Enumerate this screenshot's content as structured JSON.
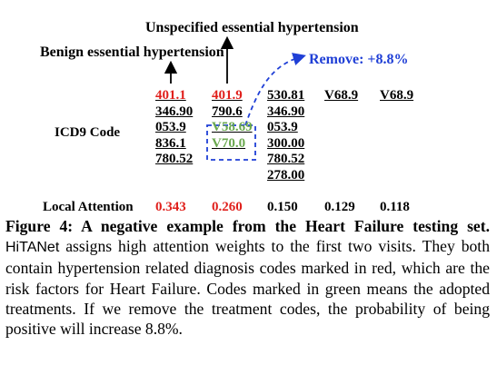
{
  "annotations": {
    "unspecified": "Unspecified essential hypertension",
    "benign": "Benign essential hypertension",
    "remove": "Remove: +8.8%"
  },
  "row_labels": {
    "icd9": "ICD9 Code",
    "attention": "Local Attention"
  },
  "visits": [
    {
      "codes": [
        {
          "code": "401.1",
          "color": "#e0201c"
        },
        {
          "code": "346.90",
          "color": "#000000"
        },
        {
          "code": "053.9",
          "color": "#000000"
        },
        {
          "code": "836.1",
          "color": "#000000"
        },
        {
          "code": "780.52",
          "color": "#000000"
        }
      ],
      "attention": "0.343",
      "attention_color": "#e0201c"
    },
    {
      "codes": [
        {
          "code": "401.9",
          "color": "#e0201c"
        },
        {
          "code": "790.6",
          "color": "#000000"
        },
        {
          "code": "V58.69",
          "color": "#6aa84f"
        },
        {
          "code": "V70.0",
          "color": "#6aa84f"
        }
      ],
      "attention": "0.260",
      "attention_color": "#e0201c"
    },
    {
      "codes": [
        {
          "code": "530.81",
          "color": "#000000"
        },
        {
          "code": "346.90",
          "color": "#000000"
        },
        {
          "code": "053.9",
          "color": "#000000"
        },
        {
          "code": "300.00",
          "color": "#000000"
        },
        {
          "code": "780.52",
          "color": "#000000"
        },
        {
          "code": "278.00",
          "color": "#000000"
        }
      ],
      "attention": "0.150",
      "attention_color": "#000000"
    },
    {
      "codes": [
        {
          "code": "V68.9",
          "color": "#000000"
        }
      ],
      "attention": "0.129",
      "attention_color": "#000000"
    },
    {
      "codes": [
        {
          "code": "V68.9",
          "color": "#000000"
        }
      ],
      "attention": "0.118",
      "attention_color": "#000000"
    }
  ],
  "caption": {
    "label": "Figure 4: A negative example from the Heart Failure testing set.",
    "model_name": "HiTANet",
    "body": "assigns high attention weights to the first two visits. They both contain hypertension related diagnosis codes marked in red, which are the risk factors for Heart Failure. Codes marked in green means the adopted treatments. If we remove the treatment codes, the probability of being positive will increase 8.8%."
  },
  "colors": {
    "risk": "#e0201c",
    "treatment": "#6aa84f",
    "annotation": "#1f3fd6"
  }
}
